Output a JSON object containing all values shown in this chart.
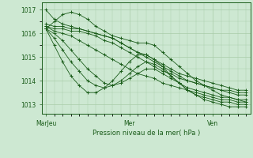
{
  "title": "Pression niveau de la mer( hPa )",
  "bg_color": "#cde8d2",
  "grid_color": "#a8cca8",
  "line_color": "#1a5c1a",
  "ylim": [
    1012.6,
    1017.3
  ],
  "yticks": [
    1013,
    1014,
    1015,
    1016,
    1017
  ],
  "xtick_labels": [
    "MarJeu",
    "Mer",
    "Ven"
  ],
  "xtick_positions": [
    0,
    10,
    20
  ],
  "n_points": 25,
  "series": [
    [
      1017.0,
      1016.6,
      1016.4,
      1016.3,
      1016.2,
      1016.1,
      1016.0,
      1015.9,
      1015.8,
      1015.6,
      1015.4,
      1015.2,
      1015.0,
      1014.8,
      1014.6,
      1014.4,
      1014.2,
      1014.0,
      1013.9,
      1013.8,
      1013.7,
      1013.6,
      1013.6,
      1013.5,
      1013.5
    ],
    [
      1016.4,
      1016.3,
      1016.3,
      1016.2,
      1016.2,
      1016.1,
      1016.0,
      1015.9,
      1015.8,
      1015.6,
      1015.4,
      1015.2,
      1015.1,
      1014.9,
      1014.7,
      1014.5,
      1014.3,
      1014.2,
      1014.1,
      1014.0,
      1013.9,
      1013.8,
      1013.7,
      1013.6,
      1013.6
    ],
    [
      1016.3,
      1016.2,
      1016.2,
      1016.1,
      1016.1,
      1016.0,
      1015.9,
      1015.7,
      1015.6,
      1015.4,
      1015.2,
      1015.0,
      1014.8,
      1014.6,
      1014.4,
      1014.3,
      1014.1,
      1014.0,
      1013.9,
      1013.8,
      1013.7,
      1013.6,
      1013.5,
      1013.4,
      1013.4
    ],
    [
      1016.3,
      1016.1,
      1016.0,
      1015.9,
      1015.7,
      1015.5,
      1015.3,
      1015.1,
      1014.9,
      1014.7,
      1014.5,
      1014.3,
      1014.2,
      1014.1,
      1013.9,
      1013.8,
      1013.7,
      1013.6,
      1013.5,
      1013.4,
      1013.3,
      1013.2,
      1013.2,
      1013.1,
      1013.1
    ],
    [
      1016.2,
      1016.0,
      1015.7,
      1015.3,
      1014.9,
      1014.5,
      1014.2,
      1013.9,
      1013.8,
      1013.9,
      1014.1,
      1014.3,
      1014.5,
      1014.5,
      1014.3,
      1014.1,
      1013.9,
      1013.7,
      1013.6,
      1013.5,
      1013.4,
      1013.3,
      1013.3,
      1013.2,
      1013.2
    ],
    [
      1016.2,
      1015.8,
      1015.3,
      1014.8,
      1014.4,
      1014.0,
      1013.8,
      1013.7,
      1013.8,
      1014.0,
      1014.3,
      1014.6,
      1014.8,
      1014.7,
      1014.5,
      1014.2,
      1013.9,
      1013.6,
      1013.4,
      1013.3,
      1013.2,
      1013.1,
      1013.1,
      1013.0,
      1013.0
    ],
    [
      1016.2,
      1015.5,
      1014.8,
      1014.2,
      1013.8,
      1013.5,
      1013.5,
      1013.7,
      1014.0,
      1014.4,
      1014.8,
      1015.1,
      1015.1,
      1014.9,
      1014.6,
      1014.2,
      1013.9,
      1013.6,
      1013.4,
      1013.2,
      1013.1,
      1013.0,
      1012.9,
      1012.9,
      1012.9
    ],
    [
      1016.2,
      1016.5,
      1016.8,
      1016.9,
      1016.8,
      1016.6,
      1016.3,
      1016.1,
      1015.9,
      1015.8,
      1015.7,
      1015.6,
      1015.6,
      1015.5,
      1015.2,
      1014.9,
      1014.6,
      1014.3,
      1014.0,
      1013.8,
      1013.6,
      1013.4,
      1013.3,
      1013.2,
      1013.1
    ]
  ]
}
